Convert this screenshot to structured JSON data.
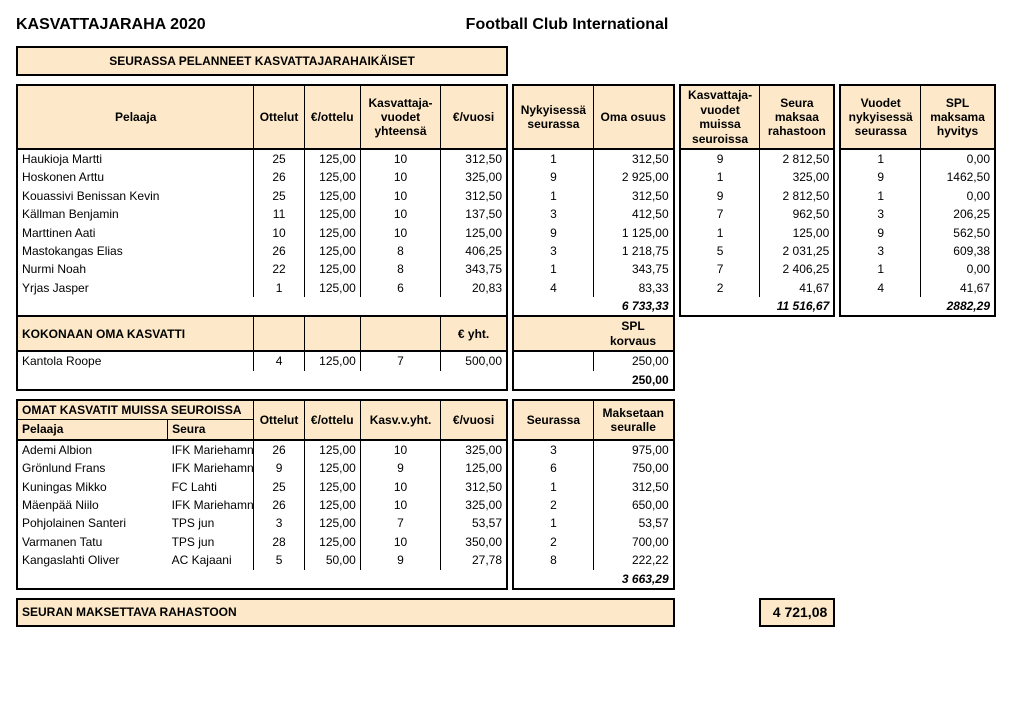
{
  "title_left": "KASVATTAJARAHA 2020",
  "title_right": "Football Club International",
  "section1": {
    "banner": "SEURASSA PELANNEET KASVATTAJARAHAIKÄISET",
    "headers": {
      "pelaaja": "Pelaaja",
      "ottelut": "Ottelut",
      "eottelu": "€/ottelu",
      "vuodet": "Kasvattaja-vuodet yhteensä",
      "evuosi": "€/vuosi",
      "nyky": "Nykyisessä seurassa",
      "osuus": "Oma osuus",
      "muissa": "Kasvattaja-vuodet muissa seuroissa",
      "rahastoon": "Seura maksaa rahastoon",
      "vny": "Vuodet nykyisessä seurassa",
      "spl": "SPL maksama hyvitys"
    },
    "rows": [
      {
        "p": "Haukioja Martti",
        "ott": "25",
        "eott": "125,00",
        "v": "10",
        "ev": "312,50",
        "nyky": "1",
        "os": "312,50",
        "mu": "9",
        "rah": "2 812,50",
        "vny": "1",
        "spl": "0,00"
      },
      {
        "p": "Hoskonen Arttu",
        "ott": "26",
        "eott": "125,00",
        "v": "10",
        "ev": "325,00",
        "nyky": "9",
        "os": "2 925,00",
        "mu": "1",
        "rah": "325,00",
        "vny": "9",
        "spl": "1462,50"
      },
      {
        "p": "Kouassivi Benissan Kevin",
        "ott": "25",
        "eott": "125,00",
        "v": "10",
        "ev": "312,50",
        "nyky": "1",
        "os": "312,50",
        "mu": "9",
        "rah": "2 812,50",
        "vny": "1",
        "spl": "0,00"
      },
      {
        "p": "Källman Benjamin",
        "ott": "11",
        "eott": "125,00",
        "v": "10",
        "ev": "137,50",
        "nyky": "3",
        "os": "412,50",
        "mu": "7",
        "rah": "962,50",
        "vny": "3",
        "spl": "206,25"
      },
      {
        "p": "Marttinen Aati",
        "ott": "10",
        "eott": "125,00",
        "v": "10",
        "ev": "125,00",
        "nyky": "9",
        "os": "1 125,00",
        "mu": "1",
        "rah": "125,00",
        "vny": "9",
        "spl": "562,50"
      },
      {
        "p": "Mastokangas Elias",
        "ott": "26",
        "eott": "125,00",
        "v": "8",
        "ev": "406,25",
        "nyky": "3",
        "os": "1 218,75",
        "mu": "5",
        "rah": "2 031,25",
        "vny": "3",
        "spl": "609,38"
      },
      {
        "p": "Nurmi Noah",
        "ott": "22",
        "eott": "125,00",
        "v": "8",
        "ev": "343,75",
        "nyky": "1",
        "os": "343,75",
        "mu": "7",
        "rah": "2 406,25",
        "vny": "1",
        "spl": "0,00"
      },
      {
        "p": "Yrjas Jasper",
        "ott": "1",
        "eott": "125,00",
        "v": "6",
        "ev": "20,83",
        "nyky": "4",
        "os": "83,33",
        "mu": "2",
        "rah": "41,67",
        "vny": "4",
        "spl": "41,67"
      }
    ],
    "totals": {
      "os": "6 733,33",
      "rah": "11 516,67",
      "spl": "2882,29"
    }
  },
  "section2": {
    "banner": "KOKONAAN OMA KASVATTI",
    "eyht": "€ yht.",
    "splk": "SPL korvaus",
    "rows": [
      {
        "p": "Kantola Roope",
        "ott": "4",
        "eott": "125,00",
        "v": "7",
        "ev": "500,00",
        "spl": "250,00"
      }
    ],
    "total_spl": "250,00"
  },
  "section3": {
    "banner": "OMAT KASVATIT MUISSA SEUROISSA",
    "headers": {
      "pelaaja": "Pelaaja",
      "seura": "Seura",
      "ottelut": "Ottelut",
      "eottelu": "€/ottelu",
      "kasv": "Kasv.v.yht.",
      "evuosi": "€/vuosi",
      "seurassa": "Seurassa",
      "maksetaan": "Maksetaan seuralle"
    },
    "rows": [
      {
        "p": "Ademi Albion",
        "s": "IFK Mariehamn",
        "ott": "26",
        "eott": "125,00",
        "v": "10",
        "ev": "325,00",
        "se": "3",
        "mak": "975,00"
      },
      {
        "p": "Grönlund Frans",
        "s": "IFK Mariehamn",
        "ott": "9",
        "eott": "125,00",
        "v": "9",
        "ev": "125,00",
        "se": "6",
        "mak": "750,00"
      },
      {
        "p": "Kuningas Mikko",
        "s": "FC Lahti",
        "ott": "25",
        "eott": "125,00",
        "v": "10",
        "ev": "312,50",
        "se": "1",
        "mak": "312,50"
      },
      {
        "p": "Mäenpää Niilo",
        "s": "IFK Mariehamn",
        "ott": "26",
        "eott": "125,00",
        "v": "10",
        "ev": "325,00",
        "se": "2",
        "mak": "650,00"
      },
      {
        "p": "Pohjolainen Santeri",
        "s": "TPS jun",
        "ott": "3",
        "eott": "125,00",
        "v": "7",
        "ev": "53,57",
        "se": "1",
        "mak": "53,57"
      },
      {
        "p": "Varmanen Tatu",
        "s": "TPS jun",
        "ott": "28",
        "eott": "125,00",
        "v": "10",
        "ev": "350,00",
        "se": "2",
        "mak": "700,00"
      },
      {
        "p": "Kangaslahti Oliver",
        "s": "AC Kajaani",
        "ott": "5",
        "eott": "50,00",
        "v": "9",
        "ev": "27,78",
        "se": "8",
        "mak": "222,22"
      }
    ],
    "total": "3 663,29"
  },
  "footer": {
    "label": "SEURAN MAKSETTAVA RAHASTOON",
    "value": "4 721,08"
  }
}
